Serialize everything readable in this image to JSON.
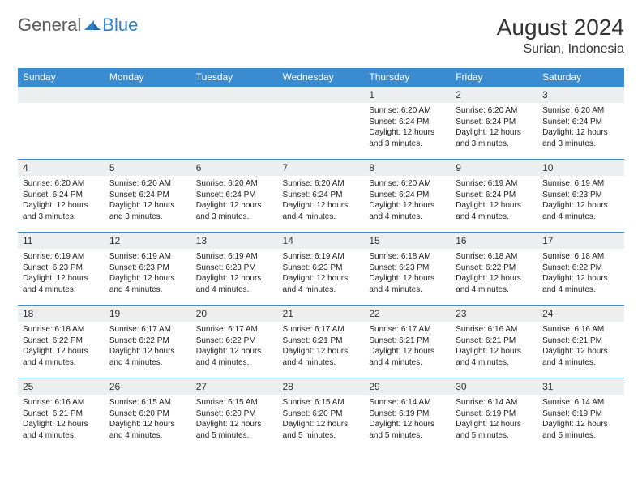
{
  "brand": {
    "general": "General",
    "blue": "Blue"
  },
  "title": "August 2024",
  "location": "Surian, Indonesia",
  "colors": {
    "header_bg": "#3b8bd0",
    "header_text": "#ffffff",
    "daynum_bg": "#eceeef",
    "border": "#3b8bd0",
    "text": "#222222",
    "logo_gray": "#5a5a5a",
    "logo_blue": "#2f7dc4"
  },
  "weekdays": [
    "Sunday",
    "Monday",
    "Tuesday",
    "Wednesday",
    "Thursday",
    "Friday",
    "Saturday"
  ],
  "weeks": [
    [
      null,
      null,
      null,
      null,
      {
        "n": "1",
        "sunrise": "Sunrise: 6:20 AM",
        "sunset": "Sunset: 6:24 PM",
        "daylight": "Daylight: 12 hours and 3 minutes."
      },
      {
        "n": "2",
        "sunrise": "Sunrise: 6:20 AM",
        "sunset": "Sunset: 6:24 PM",
        "daylight": "Daylight: 12 hours and 3 minutes."
      },
      {
        "n": "3",
        "sunrise": "Sunrise: 6:20 AM",
        "sunset": "Sunset: 6:24 PM",
        "daylight": "Daylight: 12 hours and 3 minutes."
      }
    ],
    [
      {
        "n": "4",
        "sunrise": "Sunrise: 6:20 AM",
        "sunset": "Sunset: 6:24 PM",
        "daylight": "Daylight: 12 hours and 3 minutes."
      },
      {
        "n": "5",
        "sunrise": "Sunrise: 6:20 AM",
        "sunset": "Sunset: 6:24 PM",
        "daylight": "Daylight: 12 hours and 3 minutes."
      },
      {
        "n": "6",
        "sunrise": "Sunrise: 6:20 AM",
        "sunset": "Sunset: 6:24 PM",
        "daylight": "Daylight: 12 hours and 3 minutes."
      },
      {
        "n": "7",
        "sunrise": "Sunrise: 6:20 AM",
        "sunset": "Sunset: 6:24 PM",
        "daylight": "Daylight: 12 hours and 4 minutes."
      },
      {
        "n": "8",
        "sunrise": "Sunrise: 6:20 AM",
        "sunset": "Sunset: 6:24 PM",
        "daylight": "Daylight: 12 hours and 4 minutes."
      },
      {
        "n": "9",
        "sunrise": "Sunrise: 6:19 AM",
        "sunset": "Sunset: 6:24 PM",
        "daylight": "Daylight: 12 hours and 4 minutes."
      },
      {
        "n": "10",
        "sunrise": "Sunrise: 6:19 AM",
        "sunset": "Sunset: 6:23 PM",
        "daylight": "Daylight: 12 hours and 4 minutes."
      }
    ],
    [
      {
        "n": "11",
        "sunrise": "Sunrise: 6:19 AM",
        "sunset": "Sunset: 6:23 PM",
        "daylight": "Daylight: 12 hours and 4 minutes."
      },
      {
        "n": "12",
        "sunrise": "Sunrise: 6:19 AM",
        "sunset": "Sunset: 6:23 PM",
        "daylight": "Daylight: 12 hours and 4 minutes."
      },
      {
        "n": "13",
        "sunrise": "Sunrise: 6:19 AM",
        "sunset": "Sunset: 6:23 PM",
        "daylight": "Daylight: 12 hours and 4 minutes."
      },
      {
        "n": "14",
        "sunrise": "Sunrise: 6:19 AM",
        "sunset": "Sunset: 6:23 PM",
        "daylight": "Daylight: 12 hours and 4 minutes."
      },
      {
        "n": "15",
        "sunrise": "Sunrise: 6:18 AM",
        "sunset": "Sunset: 6:23 PM",
        "daylight": "Daylight: 12 hours and 4 minutes."
      },
      {
        "n": "16",
        "sunrise": "Sunrise: 6:18 AM",
        "sunset": "Sunset: 6:22 PM",
        "daylight": "Daylight: 12 hours and 4 minutes."
      },
      {
        "n": "17",
        "sunrise": "Sunrise: 6:18 AM",
        "sunset": "Sunset: 6:22 PM",
        "daylight": "Daylight: 12 hours and 4 minutes."
      }
    ],
    [
      {
        "n": "18",
        "sunrise": "Sunrise: 6:18 AM",
        "sunset": "Sunset: 6:22 PM",
        "daylight": "Daylight: 12 hours and 4 minutes."
      },
      {
        "n": "19",
        "sunrise": "Sunrise: 6:17 AM",
        "sunset": "Sunset: 6:22 PM",
        "daylight": "Daylight: 12 hours and 4 minutes."
      },
      {
        "n": "20",
        "sunrise": "Sunrise: 6:17 AM",
        "sunset": "Sunset: 6:22 PM",
        "daylight": "Daylight: 12 hours and 4 minutes."
      },
      {
        "n": "21",
        "sunrise": "Sunrise: 6:17 AM",
        "sunset": "Sunset: 6:21 PM",
        "daylight": "Daylight: 12 hours and 4 minutes."
      },
      {
        "n": "22",
        "sunrise": "Sunrise: 6:17 AM",
        "sunset": "Sunset: 6:21 PM",
        "daylight": "Daylight: 12 hours and 4 minutes."
      },
      {
        "n": "23",
        "sunrise": "Sunrise: 6:16 AM",
        "sunset": "Sunset: 6:21 PM",
        "daylight": "Daylight: 12 hours and 4 minutes."
      },
      {
        "n": "24",
        "sunrise": "Sunrise: 6:16 AM",
        "sunset": "Sunset: 6:21 PM",
        "daylight": "Daylight: 12 hours and 4 minutes."
      }
    ],
    [
      {
        "n": "25",
        "sunrise": "Sunrise: 6:16 AM",
        "sunset": "Sunset: 6:21 PM",
        "daylight": "Daylight: 12 hours and 4 minutes."
      },
      {
        "n": "26",
        "sunrise": "Sunrise: 6:15 AM",
        "sunset": "Sunset: 6:20 PM",
        "daylight": "Daylight: 12 hours and 4 minutes."
      },
      {
        "n": "27",
        "sunrise": "Sunrise: 6:15 AM",
        "sunset": "Sunset: 6:20 PM",
        "daylight": "Daylight: 12 hours and 5 minutes."
      },
      {
        "n": "28",
        "sunrise": "Sunrise: 6:15 AM",
        "sunset": "Sunset: 6:20 PM",
        "daylight": "Daylight: 12 hours and 5 minutes."
      },
      {
        "n": "29",
        "sunrise": "Sunrise: 6:14 AM",
        "sunset": "Sunset: 6:19 PM",
        "daylight": "Daylight: 12 hours and 5 minutes."
      },
      {
        "n": "30",
        "sunrise": "Sunrise: 6:14 AM",
        "sunset": "Sunset: 6:19 PM",
        "daylight": "Daylight: 12 hours and 5 minutes."
      },
      {
        "n": "31",
        "sunrise": "Sunrise: 6:14 AM",
        "sunset": "Sunset: 6:19 PM",
        "daylight": "Daylight: 12 hours and 5 minutes."
      }
    ]
  ]
}
